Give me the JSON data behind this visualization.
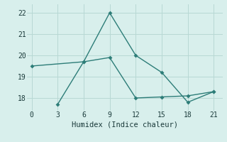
{
  "line1_x": [
    0,
    6,
    9,
    12,
    15,
    18,
    21
  ],
  "line1_y": [
    19.5,
    19.7,
    22.0,
    20.0,
    19.2,
    17.8,
    18.3
  ],
  "line2_x": [
    3,
    6,
    9,
    12,
    15,
    18,
    21
  ],
  "line2_y": [
    17.7,
    19.7,
    19.9,
    18.0,
    18.05,
    18.1,
    18.3
  ],
  "line_color": "#2d7d78",
  "bg_color": "#d8efec",
  "grid_color": "#b8d8d4",
  "xlabel": "Humidex (Indice chaleur)",
  "xlim": [
    -0.5,
    22
  ],
  "ylim": [
    17.4,
    22.4
  ],
  "xticks": [
    0,
    3,
    6,
    9,
    12,
    15,
    18,
    21
  ],
  "yticks": [
    18,
    19,
    20,
    21,
    22
  ],
  "marker_size": 3,
  "font_family": "monospace",
  "linewidth": 1.0
}
